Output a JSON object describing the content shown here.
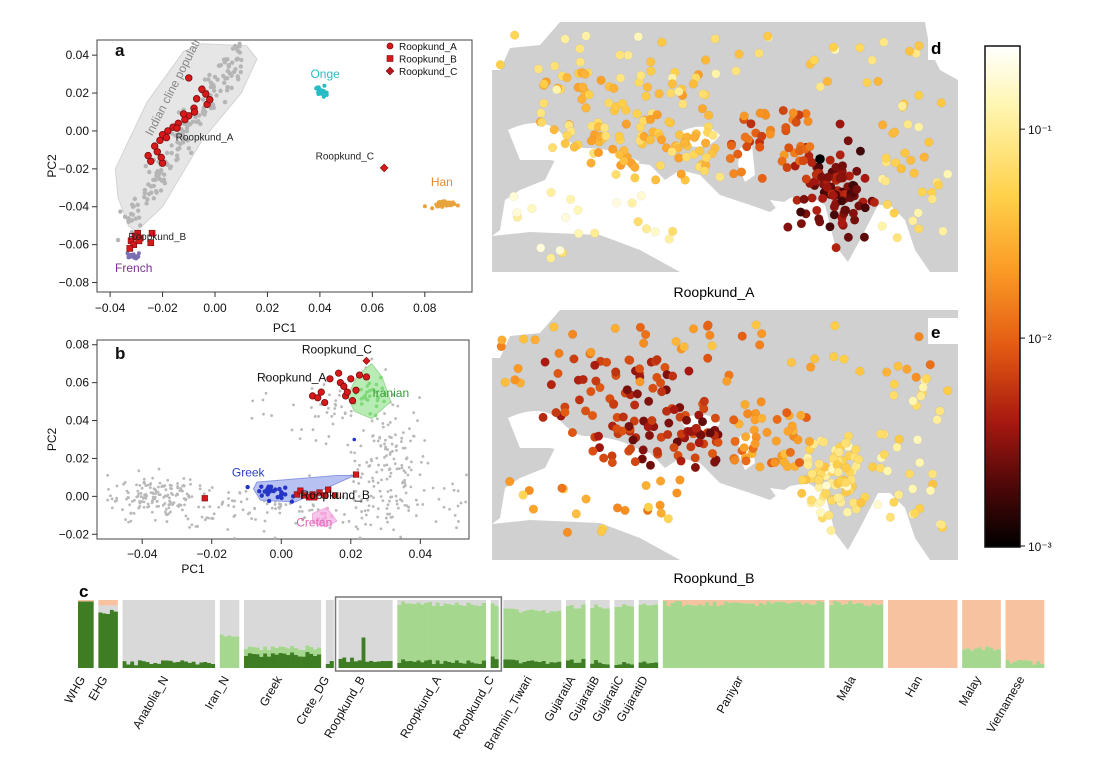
{
  "chart_data": [
    {
      "panel": "a",
      "type": "scatter",
      "xlabel": "PC1",
      "ylabel": "PC2",
      "xlim": [
        -0.045,
        0.098
      ],
      "ylim": [
        -0.085,
        0.048
      ],
      "xticks": [
        -0.04,
        -0.02,
        0.0,
        0.02,
        0.04,
        0.06,
        0.08
      ],
      "xtick_labels": [
        "−0.04",
        "−0.02",
        "0.00",
        "0.02",
        "0.04",
        "0.06",
        "0.08"
      ],
      "yticks": [
        -0.08,
        -0.06,
        -0.04,
        -0.02,
        0.0,
        0.02,
        0.04
      ],
      "ytick_labels": [
        "−0.08",
        "−0.06",
        "−0.04",
        "−0.02",
        "0.00",
        "0.02",
        "0.04"
      ],
      "legend": {
        "position": "top-right",
        "entries": [
          {
            "label": "Roopkund_A",
            "marker": "circle",
            "color": "#d7191c"
          },
          {
            "label": "Roopkund_B",
            "marker": "square",
            "color": "#d7191c"
          },
          {
            "label": "Roopkund_C",
            "marker": "diamond",
            "color": "#b8141a"
          }
        ]
      },
      "cline_label": "Indian cline populations",
      "population_labels": [
        {
          "text": "Onge",
          "x": 0.042,
          "y": 0.028,
          "color": "#26bcc4"
        },
        {
          "text": "Han",
          "x": 0.0865,
          "y": -0.029,
          "color": "#e88a2e"
        },
        {
          "text": "French",
          "x": -0.031,
          "y": -0.0745,
          "color": "#7b3294"
        },
        {
          "text": "Roopkund_A",
          "x": -0.004,
          "y": -0.005,
          "color": "#222222"
        },
        {
          "text": "Roopkund_B",
          "x": -0.022,
          "y": -0.0575,
          "color": "#222222"
        },
        {
          "text": "Roopkund_C",
          "x": 0.0495,
          "y": -0.015,
          "color": "#222222"
        }
      ],
      "clusters": {
        "onge": {
          "x": 0.0405,
          "y": 0.0205,
          "color": "#26bcc4"
        },
        "han": {
          "x": 0.0875,
          "y": -0.0385,
          "color": "#e8a33c"
        },
        "french": {
          "x": -0.031,
          "y": -0.066,
          "color": "#7b6fb3"
        }
      },
      "series": [
        {
          "name": "Roopkund_A",
          "marker": "circle",
          "points": [
            [
              -0.01,
              0.028
            ],
            [
              -0.005,
              0.022
            ],
            [
              -0.003,
              0.014
            ],
            [
              -0.008,
              0.012
            ],
            [
              -0.0078,
              0.01
            ],
            [
              -0.01,
              0.008
            ],
            [
              -0.0115,
              0.006
            ],
            [
              -0.014,
              0.004
            ],
            [
              -0.016,
              0.002
            ],
            [
              -0.018,
              0.0
            ],
            [
              -0.02,
              -0.002
            ],
            [
              -0.021,
              -0.005
            ],
            [
              -0.023,
              -0.008
            ],
            [
              -0.022,
              -0.011
            ],
            [
              -0.0245,
              -0.016
            ],
            [
              -0.02,
              -0.017
            ],
            [
              -0.0255,
              -0.013
            ],
            [
              -0.007,
              0.017
            ],
            [
              -0.002,
              0.0165
            ],
            [
              -0.012,
              0.009
            ],
            [
              -0.0185,
              -0.0035
            ],
            [
              -0.0205,
              -0.014
            ],
            [
              -0.0145,
              0.0015
            ],
            [
              -0.0035,
              0.0195
            ]
          ]
        },
        {
          "name": "Roopkund_B",
          "marker": "square",
          "points": [
            [
              -0.032,
              -0.058
            ],
            [
              -0.03,
              -0.056
            ],
            [
              -0.0295,
              -0.054
            ],
            [
              -0.0305,
              -0.0555
            ],
            [
              -0.0285,
              -0.0565
            ],
            [
              -0.031,
              -0.06
            ],
            [
              -0.0325,
              -0.062
            ],
            [
              -0.024,
              -0.054
            ],
            [
              -0.0245,
              -0.059
            ],
            [
              -0.029,
              -0.058
            ]
          ]
        },
        {
          "name": "Roopkund_C",
          "marker": "diamond",
          "points": [
            [
              0.0645,
              -0.0195
            ]
          ]
        }
      ]
    },
    {
      "panel": "b",
      "type": "scatter",
      "xlabel": "PC1",
      "ylabel": "PC2",
      "xlim": [
        -0.053,
        0.054
      ],
      "ylim": [
        -0.0225,
        0.0825
      ],
      "xticks": [
        -0.04,
        -0.02,
        0.0,
        0.02,
        0.04
      ],
      "xtick_labels": [
        "−0.04",
        "−0.02",
        "0.00",
        "0.02",
        "0.04"
      ],
      "yticks": [
        -0.02,
        0.0,
        0.02,
        0.04,
        0.06,
        0.08
      ],
      "ytick_labels": [
        "−0.02",
        "0.00",
        "0.02",
        "0.04",
        "0.06",
        "0.08"
      ],
      "population_labels": [
        {
          "text": "Roopkund_C",
          "x": 0.016,
          "y": 0.0755,
          "color": "#111111"
        },
        {
          "text": "Roopkund_A",
          "x": 0.003,
          "y": 0.0605,
          "color": "#111111"
        },
        {
          "text": "Iranian",
          "x": 0.0315,
          "y": 0.0525,
          "color": "#3a9a3a"
        },
        {
          "text": "Greek",
          "x": -0.0095,
          "y": 0.0105,
          "color": "#2940c8"
        },
        {
          "text": "Roopkund_B",
          "x": 0.0155,
          "y": -0.0015,
          "color": "#111111"
        },
        {
          "text": "Cretan",
          "x": 0.0095,
          "y": -0.016,
          "color": "#e85fb8"
        }
      ],
      "series": [
        {
          "name": "Roopkund_A",
          "marker": "circle",
          "points": [
            [
              0.014,
              0.062
            ],
            [
              0.017,
              0.06
            ],
            [
              0.018,
              0.058
            ],
            [
              0.0115,
              0.055
            ],
            [
              0.0185,
              0.053
            ],
            [
              0.009,
              0.053
            ],
            [
              0.0105,
              0.052
            ],
            [
              0.0125,
              0.0495
            ],
            [
              0.0205,
              0.0505
            ],
            [
              0.0215,
              0.056
            ],
            [
              0.02,
              0.062
            ],
            [
              0.0225,
              0.064
            ],
            [
              0.0245,
              0.063
            ],
            [
              0.0165,
              0.065
            ],
            [
              0.019,
              0.055
            ]
          ]
        },
        {
          "name": "Roopkund_B",
          "marker": "square",
          "points": [
            [
              -0.022,
              -0.001
            ],
            [
              0.009,
              0.001
            ],
            [
              0.011,
              0.002
            ],
            [
              0.008,
              -0.0005
            ],
            [
              0.0125,
              0.0005
            ],
            [
              0.0215,
              0.0115
            ],
            [
              0.0045,
              0.001
            ],
            [
              0.0065,
              0.0005
            ],
            [
              0.0055,
              0.003
            ],
            [
              0.0095,
              -0.0005
            ],
            [
              0.0135,
              0.0035
            ],
            [
              0.0155,
              0.0005
            ]
          ]
        },
        {
          "name": "Roopkund_C",
          "marker": "diamond",
          "points": [
            [
              0.0245,
              0.0715
            ]
          ]
        }
      ]
    },
    {
      "panel": "c",
      "type": "stacked-bar",
      "component_colors": [
        "#3e7d23",
        "#a6d78e",
        "#d9d9d9",
        "#f7c2a0"
      ],
      "groups": [
        {
          "label": "WHG",
          "n": 4,
          "values": [
            0.98,
            0.0,
            0.0,
            0.02
          ]
        },
        {
          "label": "EHG",
          "n": 5,
          "values": [
            0.82,
            0.0,
            0.1,
            0.08
          ]
        },
        {
          "label": "Anatolia_N",
          "n": 24,
          "values": [
            0.08,
            0.0,
            0.92,
            0.0
          ]
        },
        {
          "label": "Iran_N",
          "n": 5,
          "values": [
            0.0,
            0.5,
            0.5,
            0.0
          ]
        },
        {
          "label": "Greek",
          "n": 20,
          "values": [
            0.2,
            0.1,
            0.7,
            0.0
          ]
        },
        {
          "label": "Crete_DG",
          "n": 2,
          "values": [
            0.08,
            0.0,
            0.92,
            0.0
          ]
        },
        {
          "label": "Roopkund_B",
          "n": 14,
          "values": [
            0.12,
            0.0,
            0.88,
            0.0
          ]
        },
        {
          "label": "Roopkund_A",
          "n": 23,
          "values": [
            0.1,
            0.85,
            0.05,
            0.0
          ]
        },
        {
          "label": "Roopkund_C",
          "n": 2,
          "values": [
            0.15,
            0.78,
            0.07,
            0.0
          ]
        },
        {
          "label": "Brahmin_Tiwari",
          "n": 15,
          "values": [
            0.1,
            0.75,
            0.15,
            0.0
          ]
        },
        {
          "label": "GujaratiA",
          "n": 5,
          "values": [
            0.1,
            0.8,
            0.1,
            0.0
          ]
        },
        {
          "label": "GujaratiB",
          "n": 5,
          "values": [
            0.08,
            0.82,
            0.1,
            0.0
          ]
        },
        {
          "label": "GujaratiC",
          "n": 5,
          "values": [
            0.08,
            0.85,
            0.07,
            0.0
          ]
        },
        {
          "label": "GujaratiD",
          "n": 5,
          "values": [
            0.1,
            0.85,
            0.05,
            0.0
          ]
        },
        {
          "label": "Paniyar",
          "n": 42,
          "values": [
            0.0,
            0.95,
            0.0,
            0.05
          ]
        },
        {
          "label": "Mala",
          "n": 14,
          "values": [
            0.0,
            0.95,
            0.0,
            0.05
          ]
        },
        {
          "label": "Han",
          "n": 18,
          "values": [
            0.0,
            0.0,
            0.0,
            1.0
          ]
        },
        {
          "label": "Malay",
          "n": 10,
          "values": [
            0.0,
            0.3,
            0.0,
            0.7
          ]
        },
        {
          "label": "Vietnamese",
          "n": 10,
          "values": [
            0.0,
            0.08,
            0.0,
            0.92
          ]
        }
      ],
      "highlight_box": [
        "Roopkund_B",
        "Roopkund_C"
      ]
    },
    {
      "panel": "d",
      "type": "map-heatmap",
      "caption": "Roopkund_A",
      "note": "Bright points in South Asia, lighter elsewhere"
    },
    {
      "panel": "e",
      "type": "map-heatmap",
      "caption": "Roopkund_B",
      "note": "Dark points in Mediterranean, lighter in South Asia"
    },
    {
      "type": "colorbar",
      "scale": "log",
      "range": [
        0.001,
        0.25
      ],
      "ticks": [
        0.1,
        0.01,
        0.001
      ],
      "tick_labels": [
        "10⁻¹",
        "10⁻²",
        "10⁻³"
      ],
      "colors": [
        "#ffffff",
        "#fff6b0",
        "#ffd14a",
        "#fb9a25",
        "#e35a12",
        "#a81810",
        "#4d0708",
        "#000000"
      ]
    }
  ],
  "panel_letters": {
    "a": "a",
    "b": "b",
    "c": "c",
    "d": "d",
    "e": "e"
  }
}
